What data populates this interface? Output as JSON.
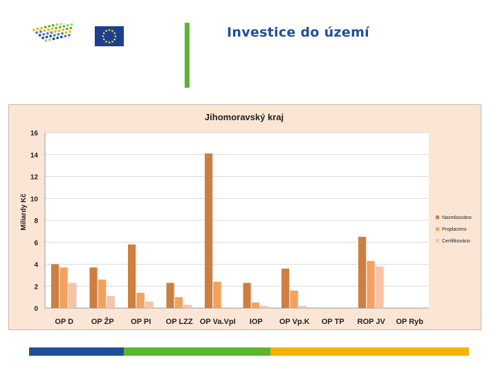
{
  "header": {
    "title": "Investice do území"
  },
  "colors": {
    "title": "#1f4f99",
    "accent_green": "#5cb531",
    "eu_blue": "#1d3f8f",
    "eu_star": "#ffdd00",
    "chart_background": "#fbe6d6",
    "plot_background": "#ffffff",
    "bar_bottom": [
      "#1f4f99",
      "#5cb531",
      "#f5b400"
    ]
  },
  "chart_data": {
    "type": "bar",
    "title": "Jihomoravský kraj",
    "xlabel": "",
    "ylabel": "Miliardy Kč",
    "ylim": [
      0,
      16
    ],
    "yticks": [
      0,
      2,
      4,
      6,
      8,
      10,
      12,
      14,
      16
    ],
    "grid": true,
    "legend_position": "right",
    "categories": [
      "OP D",
      "OP ŽP",
      "OP PI",
      "OP LZZ",
      "OP Va.VpI",
      "IOP",
      "OP Vp.K",
      "OP TP",
      "ROP JV",
      "OP Ryb"
    ],
    "series": [
      {
        "name": "Nasmlouváno",
        "color": "#cd7f3f",
        "values": [
          4.0,
          3.7,
          5.8,
          2.3,
          14.1,
          2.3,
          3.6,
          0.0,
          6.5,
          0.0
        ]
      },
      {
        "name": "Proplaceno",
        "color": "#f4a15c",
        "values": [
          3.7,
          2.6,
          1.4,
          1.0,
          2.4,
          0.5,
          1.6,
          0.0,
          4.3,
          0.0
        ]
      },
      {
        "name": "Certifikováno",
        "color": "#f7c3a4",
        "values": [
          2.3,
          1.1,
          0.6,
          0.3,
          0.0,
          0.2,
          0.2,
          0.0,
          3.8,
          0.0
        ]
      }
    ]
  }
}
